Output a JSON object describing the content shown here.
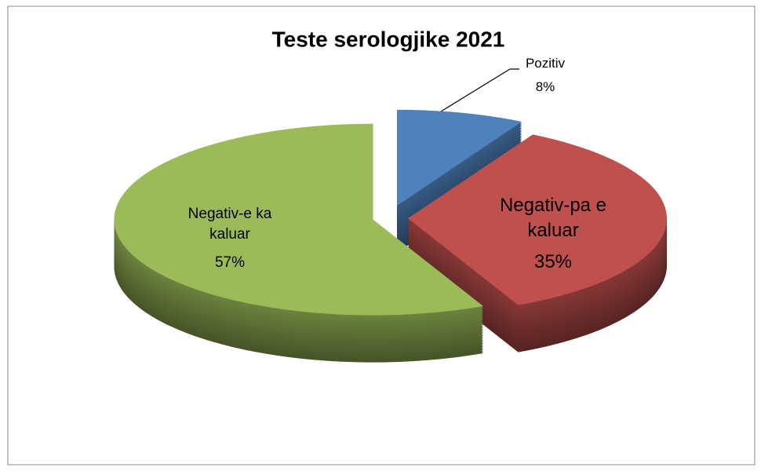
{
  "chart_data": {
    "type": "pie",
    "title": "Teste serologjike 2021",
    "categories": [
      "Pozitiv",
      "Negativ-pa e kaluar",
      "Negativ-e ka kaluar"
    ],
    "values": [
      8,
      35,
      57
    ],
    "value_labels": [
      "8%",
      "35%",
      "57%"
    ],
    "colors": [
      "#4f81bd",
      "#c0504d",
      "#9bbb59"
    ]
  }
}
